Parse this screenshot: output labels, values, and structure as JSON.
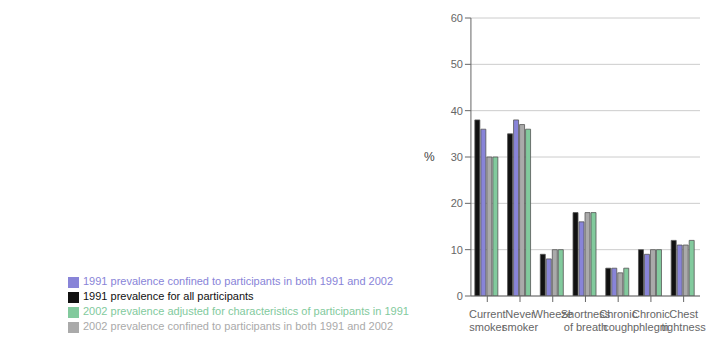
{
  "chart_data": {
    "type": "bar",
    "categories": [
      "Current\nsmoker",
      "Never\nsmoker",
      "Wheeze",
      "Shortness\nof breath",
      "Chronic\ncough",
      "Chronic\nphlegm",
      "Chest\ntightness"
    ],
    "series": [
      {
        "name": "1991 prevalence for all participants",
        "color": "#111111",
        "values": [
          38,
          35,
          9,
          18,
          6,
          10,
          12
        ]
      },
      {
        "name": "1991 prevalence confined to participants in both 1991 and 2002",
        "color": "#8884d8",
        "values": [
          36,
          38,
          8,
          16,
          6,
          9,
          11
        ]
      },
      {
        "name": "2002 prevalence confined to participants in both 1991 and 2002",
        "color": "#aaaaaa",
        "values": [
          30,
          37,
          10,
          18,
          5,
          10,
          11
        ]
      },
      {
        "name": "2002 prevalence adjusted for characteristics of participants in 1991",
        "color": "#82ca9d",
        "values": [
          30,
          36,
          10,
          18,
          6,
          10,
          12
        ]
      }
    ],
    "ylabel": "%",
    "ylim": [
      0,
      60
    ],
    "yticks": [
      0,
      10,
      20,
      30,
      40,
      50,
      60
    ],
    "grid": true,
    "legend": "bottom"
  }
}
